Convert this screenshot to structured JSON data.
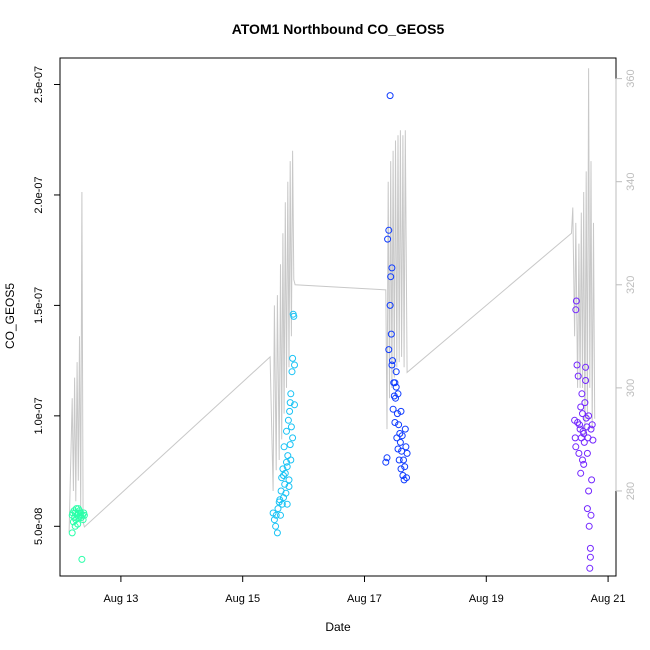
{
  "chart_data": {
    "type": "scatter",
    "title": "ATOM1 Northbound CO_GEOS5",
    "xlabel": "Date",
    "ylabel": "CO_GEOS5",
    "x_ticks": [
      "Aug 13",
      "Aug 15",
      "Aug 17",
      "Aug 19",
      "Aug 21"
    ],
    "x_tick_values": [
      13,
      15,
      17,
      19,
      21
    ],
    "xlim": [
      12.0,
      21.13
    ],
    "y_ticks": [
      "5.0e-08",
      "1.0e-07",
      "1.5e-07",
      "2.0e-07",
      "2.5e-07"
    ],
    "y_tick_values": [
      5e-08,
      1e-07,
      1.5e-07,
      2e-07,
      2.5e-07
    ],
    "ylim": [
      2.75e-08,
      2.62e-07
    ],
    "y2_ticks": [
      "280",
      "300",
      "320",
      "340",
      "360"
    ],
    "y2_tick_values": [
      280,
      300,
      320,
      340,
      360
    ],
    "y2lim": [
      263.5,
      364
    ],
    "grid": false,
    "colors": {
      "segment1": "#2affa9",
      "segment2": "#19c3f5",
      "segment3": "#0f3cff",
      "segment4": "#7327ff",
      "line": "#c8c8c8",
      "right_axis": "#bdbdbd"
    },
    "series": [
      {
        "points": [
          [
            12.2,
            5.5e-08
          ],
          [
            12.21,
            5.6e-08
          ],
          [
            12.22,
            5.2e-08
          ],
          [
            12.23,
            5.7e-08
          ],
          [
            12.24,
            5.4e-08
          ],
          [
            12.25,
            5.6e-08
          ],
          [
            12.26,
            5.3e-08
          ],
          [
            12.27,
            5.8e-08
          ],
          [
            12.28,
            5.5e-08
          ],
          [
            12.29,
            5.1e-08
          ],
          [
            12.3,
            5.6e-08
          ],
          [
            12.31,
            5.4e-08
          ],
          [
            12.32,
            5.7e-08
          ],
          [
            12.33,
            5.5e-08
          ],
          [
            12.34,
            5.6e-08
          ],
          [
            12.35,
            5.4e-08
          ],
          [
            12.36,
            3.5e-08
          ],
          [
            12.37,
            5.5e-08
          ],
          [
            12.38,
            5.3e-08
          ],
          [
            12.39,
            5.6e-08
          ],
          [
            12.4,
            5.5e-08
          ],
          [
            12.2,
            4.7e-08
          ],
          [
            12.25,
            5e-08
          ],
          [
            12.3,
            5.8e-08
          ]
        ]
      },
      {
        "points": [
          [
            15.5,
            5.6e-08
          ],
          [
            15.52,
            5.3e-08
          ],
          [
            15.54,
            5e-08
          ],
          [
            15.55,
            5.5e-08
          ],
          [
            15.57,
            4.7e-08
          ],
          [
            15.58,
            5.8e-08
          ],
          [
            15.6,
            6.1e-08
          ],
          [
            15.62,
            5.5e-08
          ],
          [
            15.63,
            6.6e-08
          ],
          [
            15.64,
            7.2e-08
          ],
          [
            15.65,
            6e-08
          ],
          [
            15.66,
            7.6e-08
          ],
          [
            15.67,
            6.3e-08
          ],
          [
            15.68,
            8.6e-08
          ],
          [
            15.69,
            6.9e-08
          ],
          [
            15.7,
            7.4e-08
          ],
          [
            15.71,
            6.5e-08
          ],
          [
            15.72,
            9.3e-08
          ],
          [
            15.73,
            7.7e-08
          ],
          [
            15.74,
            8.2e-08
          ],
          [
            15.75,
            9.8e-08
          ],
          [
            15.76,
            7.1e-08
          ],
          [
            15.77,
            1.02e-07
          ],
          [
            15.78,
            8.7e-08
          ],
          [
            15.79,
            1.1e-07
          ],
          [
            15.8,
            9.5e-08
          ],
          [
            15.81,
            1.2e-07
          ],
          [
            15.82,
            1.26e-07
          ],
          [
            15.83,
            1.46e-07
          ],
          [
            15.84,
            1.45e-07
          ],
          [
            15.85,
            1.05e-07
          ],
          [
            15.79,
            8e-08
          ],
          [
            15.76,
            6.8e-08
          ],
          [
            15.72,
            7.9e-08
          ],
          [
            15.82,
            9e-08
          ],
          [
            15.78,
            1.06e-07
          ],
          [
            15.67,
            7.3e-08
          ],
          [
            15.61,
            6.2e-08
          ],
          [
            15.85,
            1.23e-07
          ],
          [
            15.73,
            6e-08
          ]
        ]
      },
      {
        "points": [
          [
            17.35,
            7.9e-08
          ],
          [
            17.37,
            8.1e-08
          ],
          [
            17.38,
            1.8e-07
          ],
          [
            17.4,
            1.84e-07
          ],
          [
            17.42,
            2.45e-07
          ],
          [
            17.43,
            1.63e-07
          ],
          [
            17.44,
            1.37e-07
          ],
          [
            17.45,
            1.67e-07
          ],
          [
            17.46,
            1.25e-07
          ],
          [
            17.47,
            1.03e-07
          ],
          [
            17.48,
            1.15e-07
          ],
          [
            17.49,
            1.09e-07
          ],
          [
            17.5,
            9.7e-08
          ],
          [
            17.51,
            1.08e-07
          ],
          [
            17.52,
            1.2e-07
          ],
          [
            17.53,
            9e-08
          ],
          [
            17.54,
            1.01e-07
          ],
          [
            17.55,
            8.5e-08
          ],
          [
            17.56,
            9.6e-08
          ],
          [
            17.57,
            8e-08
          ],
          [
            17.58,
            9.2e-08
          ],
          [
            17.59,
            8.8e-08
          ],
          [
            17.6,
            7.6e-08
          ],
          [
            17.61,
            8.4e-08
          ],
          [
            17.62,
            9.1e-08
          ],
          [
            17.63,
            7.3e-08
          ],
          [
            17.64,
            8e-08
          ],
          [
            17.65,
            7.1e-08
          ],
          [
            17.66,
            7.7e-08
          ],
          [
            17.67,
            9.4e-08
          ],
          [
            17.68,
            8.6e-08
          ],
          [
            17.69,
            7.2e-08
          ],
          [
            17.7,
            8.3e-08
          ],
          [
            17.5,
            1.15e-07
          ],
          [
            17.45,
            1.23e-07
          ],
          [
            17.42,
            1.5e-07
          ],
          [
            17.55,
            1.1e-07
          ],
          [
            17.6,
            1.02e-07
          ],
          [
            17.4,
            1.3e-07
          ],
          [
            17.52,
            1.13e-07
          ]
        ]
      },
      {
        "points": [
          [
            20.45,
            9.8e-08
          ],
          [
            20.46,
            9e-08
          ],
          [
            20.47,
            8.6e-08
          ],
          [
            20.48,
            1.52e-07
          ],
          [
            20.49,
            1.23e-07
          ],
          [
            20.5,
            9.7e-08
          ],
          [
            20.51,
            1.18e-07
          ],
          [
            20.52,
            8.3e-08
          ],
          [
            20.53,
            9.6e-08
          ],
          [
            20.54,
            9.4e-08
          ],
          [
            20.55,
            7.4e-08
          ],
          [
            20.56,
            9e-08
          ],
          [
            20.57,
            1.1e-07
          ],
          [
            20.58,
            1.01e-07
          ],
          [
            20.59,
            9.3e-08
          ],
          [
            20.6,
            7.8e-08
          ],
          [
            20.61,
            8.8e-08
          ],
          [
            20.62,
            1.06e-07
          ],
          [
            20.63,
            1.22e-07
          ],
          [
            20.64,
            9.9e-08
          ],
          [
            20.65,
            9.5e-08
          ],
          [
            20.66,
            5.8e-08
          ],
          [
            20.67,
            9e-08
          ],
          [
            20.68,
            1e-07
          ],
          [
            20.69,
            5e-08
          ],
          [
            20.7,
            3.1e-08
          ],
          [
            20.71,
            4e-08
          ],
          [
            20.72,
            9.4e-08
          ],
          [
            20.73,
            7.1e-08
          ],
          [
            20.74,
            9.6e-08
          ],
          [
            20.75,
            8.9e-08
          ],
          [
            20.47,
            1.48e-07
          ],
          [
            20.58,
            8e-08
          ],
          [
            20.63,
            1.16e-07
          ],
          [
            20.68,
            6.6e-08
          ],
          [
            20.71,
            3.6e-08
          ],
          [
            20.66,
            8.3e-08
          ],
          [
            20.55,
            1.04e-07
          ],
          [
            20.6,
            9.2e-08
          ],
          [
            20.72,
            5.5e-08
          ]
        ]
      }
    ],
    "right_axis_line": [
      [
        12.15,
        272
      ],
      [
        12.2,
        298
      ],
      [
        12.22,
        280
      ],
      [
        12.24,
        302
      ],
      [
        12.26,
        278
      ],
      [
        12.28,
        305
      ],
      [
        12.3,
        282
      ],
      [
        12.32,
        310
      ],
      [
        12.34,
        276
      ],
      [
        12.36,
        338
      ],
      [
        12.38,
        274
      ],
      [
        12.4,
        273
      ],
      [
        15.45,
        306
      ],
      [
        15.5,
        280
      ],
      [
        15.52,
        316
      ],
      [
        15.55,
        284
      ],
      [
        15.57,
        318
      ],
      [
        15.6,
        286
      ],
      [
        15.62,
        324
      ],
      [
        15.64,
        290
      ],
      [
        15.66,
        330
      ],
      [
        15.68,
        295
      ],
      [
        15.7,
        336
      ],
      [
        15.72,
        300
      ],
      [
        15.74,
        340
      ],
      [
        15.76,
        304
      ],
      [
        15.78,
        344
      ],
      [
        15.8,
        310
      ],
      [
        15.82,
        346
      ],
      [
        15.84,
        321
      ],
      [
        15.86,
        320
      ],
      [
        17.35,
        319
      ],
      [
        17.37,
        292
      ],
      [
        17.39,
        340
      ],
      [
        17.41,
        298
      ],
      [
        17.43,
        344
      ],
      [
        17.45,
        300
      ],
      [
        17.47,
        346
      ],
      [
        17.49,
        302
      ],
      [
        17.51,
        348
      ],
      [
        17.53,
        304
      ],
      [
        17.55,
        349
      ],
      [
        17.57,
        305
      ],
      [
        17.59,
        350
      ],
      [
        17.61,
        306
      ],
      [
        17.63,
        349
      ],
      [
        17.65,
        304
      ],
      [
        17.67,
        350
      ],
      [
        17.7,
        303
      ],
      [
        20.4,
        330
      ],
      [
        20.42,
        335
      ],
      [
        20.45,
        310
      ],
      [
        20.47,
        332
      ],
      [
        20.5,
        300
      ],
      [
        20.52,
        328
      ],
      [
        20.54,
        300
      ],
      [
        20.56,
        334
      ],
      [
        20.58,
        300
      ],
      [
        20.6,
        338
      ],
      [
        20.62,
        290
      ],
      [
        20.64,
        342
      ],
      [
        20.66,
        294
      ],
      [
        20.68,
        362
      ],
      [
        20.7,
        300
      ],
      [
        20.72,
        344
      ],
      [
        20.74,
        292
      ],
      [
        20.76,
        332
      ],
      [
        20.78,
        294
      ]
    ]
  }
}
